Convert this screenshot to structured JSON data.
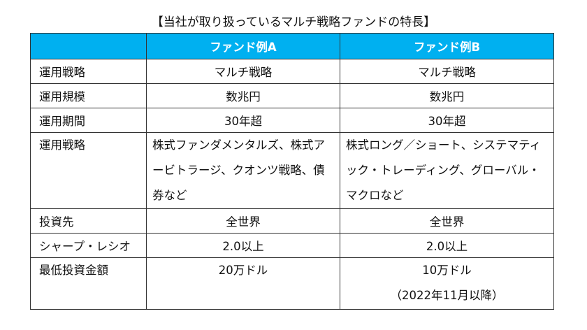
{
  "title": "【当社が取り扱っているマルチ戦略ファンドの特長】",
  "header": {
    "blank": "",
    "fund_a": "ファンド例A",
    "fund_b": "ファンド例B"
  },
  "colors": {
    "header_bg": "#00b0f0",
    "header_text": "#ffffff"
  },
  "rows": [
    {
      "label": "運用戦略",
      "a": "マルチ戦略",
      "b": "マルチ戦略"
    },
    {
      "label": "運用規模",
      "a": "数兆円",
      "b": "数兆円"
    },
    {
      "label": "運用期間",
      "a": "30年超",
      "b": "30年超"
    },
    {
      "label": "運用戦略",
      "a": "株式ファンダメンタルズ、株式アービトラージ、クオンツ戦略、債券など",
      "b": "株式ロング／ショート、システマティック・トレーディング、グローバル・マクロなど"
    },
    {
      "label": "投資先",
      "a": "全世界",
      "b": "全世界"
    },
    {
      "label": "シャープ・レシオ",
      "a": "2.0以上",
      "b": "2.0以上"
    },
    {
      "label": "最低投資金額",
      "a": "20万ドル",
      "b": "10万ドル",
      "b_note": "（2022年11月以降）"
    }
  ]
}
